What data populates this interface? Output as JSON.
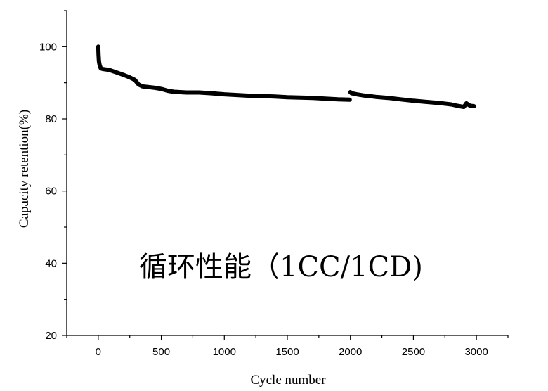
{
  "chart_data": {
    "type": "line",
    "title": "",
    "annotation": "循环性能（1CC/1CD)",
    "xlabel": "Cycle number",
    "ylabel": "Capacity retention(%)",
    "xlim": [
      -250,
      3250
    ],
    "ylim": [
      20,
      110
    ],
    "xticks": [
      0,
      500,
      1000,
      1500,
      2000,
      2500,
      3000
    ],
    "yticks": [
      20,
      40,
      60,
      80,
      100
    ],
    "grid": false,
    "line_color": "#000000",
    "series": [
      {
        "x": [
          0,
          2,
          5,
          10,
          20,
          40,
          60,
          80,
          100,
          150,
          200,
          250,
          290,
          320,
          350,
          400,
          450,
          500,
          550,
          600,
          700,
          800,
          900,
          1000,
          1100,
          1200,
          1300,
          1400,
          1500,
          1600,
          1700,
          1800,
          1900,
          1995,
          2000,
          2010,
          2050,
          2100,
          2200,
          2300,
          2400,
          2500,
          2600,
          2700,
          2800,
          2850,
          2900,
          2920,
          2950,
          2980
        ],
        "y": [
          100,
          98,
          96,
          95,
          94,
          93.8,
          93.7,
          93.6,
          93.4,
          92.8,
          92.2,
          91.5,
          90.8,
          89.5,
          89.0,
          88.8,
          88.6,
          88.3,
          87.8,
          87.5,
          87.3,
          87.3,
          87.1,
          86.8,
          86.6,
          86.4,
          86.3,
          86.2,
          86.0,
          85.9,
          85.8,
          85.6,
          85.4,
          85.3,
          87.4,
          87.1,
          86.8,
          86.5,
          86.1,
          85.8,
          85.4,
          85.0,
          84.7,
          84.4,
          84.0,
          83.6,
          83.3,
          84.3,
          83.6,
          83.5
        ]
      }
    ]
  }
}
